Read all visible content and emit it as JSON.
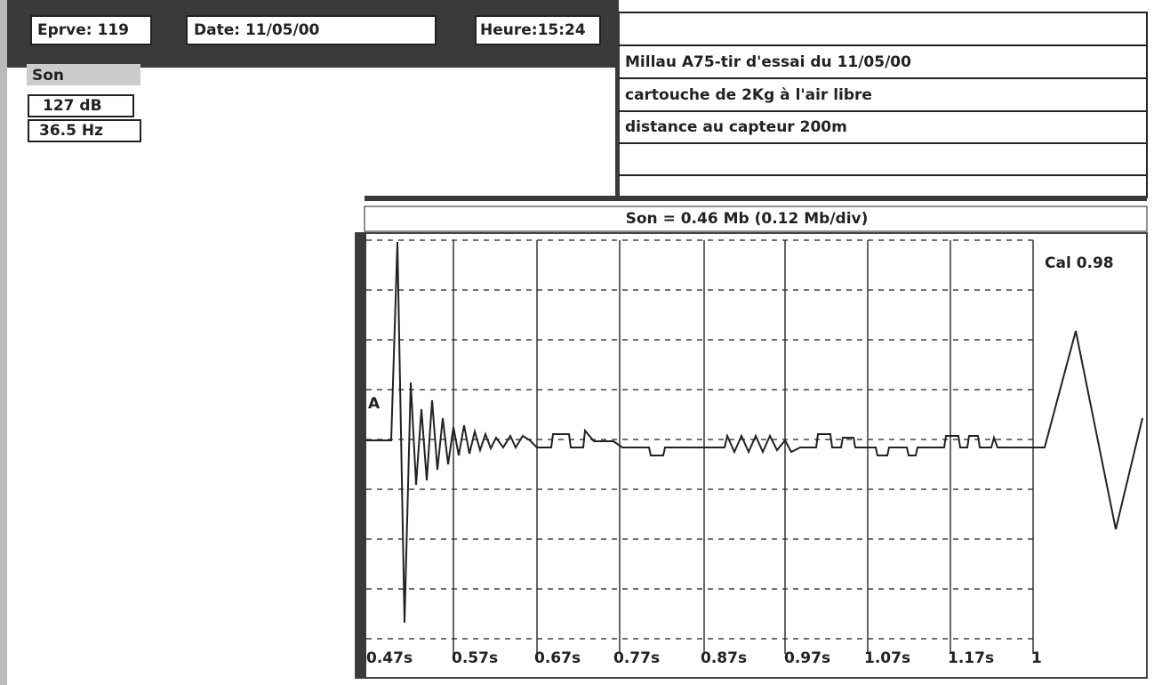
{
  "header": {
    "test": "Eprve: 119",
    "date": "Date: 11/05/00",
    "time": "Heure:15:24"
  },
  "channel": {
    "name": "Son",
    "level": "127 dB",
    "frequency": "36.5 Hz"
  },
  "notes": [
    "Millau A75-tir d'essai du 11/05/00",
    "cartouche de 2Kg à l'air libre",
    "distance au capteur 200m"
  ],
  "plot": {
    "scale": "Son = 0.46 Mb (0.12 Mb/div)",
    "calibration": "Cal 0.98",
    "marker": "A",
    "time_labels": [
      "0.47s",
      "0.57s",
      "0.67s",
      "0.77s",
      "0.87s",
      "0.97s",
      "1.07s",
      "1.17s",
      "1"
    ]
  }
}
